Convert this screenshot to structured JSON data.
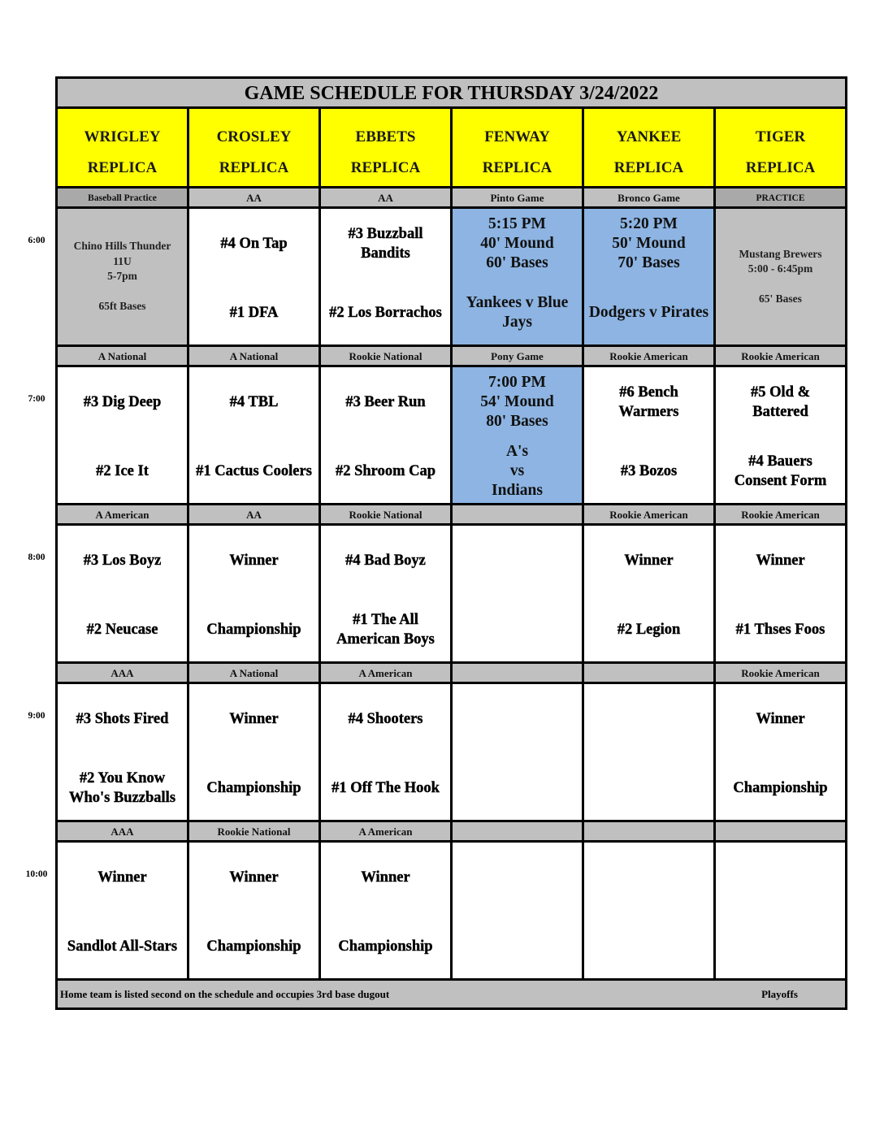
{
  "title": "GAME SCHEDULE FOR THURSDAY 3/24/2022",
  "fields": [
    [
      "WRIGLEY",
      "REPLICA"
    ],
    [
      "CROSLEY",
      "REPLICA"
    ],
    [
      "EBBETS",
      "REPLICA"
    ],
    [
      "FENWAY",
      "REPLICA"
    ],
    [
      "YANKEE",
      "REPLICA"
    ],
    [
      "TIGER",
      "REPLICA"
    ]
  ],
  "colors": {
    "header": "#ffff00",
    "label": "#c0c0c0",
    "practice": "#c0c0c0",
    "special": "#8db4e2"
  },
  "blocks": [
    {
      "time": "6:00",
      "cells": [
        {
          "label": "Baseball Practice",
          "dark": true,
          "bg": "gray",
          "lines": [
            "Chino Hills Thunder",
            "11U",
            "5-7pm",
            "",
            "65ft Bases"
          ]
        },
        {
          "label": "AA",
          "top": [
            "#4 On Tap"
          ],
          "bottom": [
            "#1 DFA"
          ]
        },
        {
          "label": "AA",
          "top": [
            "#3 Buzzball",
            "Bandits"
          ],
          "bottom": [
            "#2 Los Borrachos"
          ]
        },
        {
          "label": "Pinto Game",
          "bg": "blue",
          "top": [
            "5:15 PM",
            "40' Mound",
            "60' Bases"
          ],
          "bottom": [
            "Yankees  v Blue",
            "Jays"
          ]
        },
        {
          "label": "Bronco Game",
          "bg": "blue",
          "top": [
            "5:20 PM",
            "50' Mound",
            "70' Bases"
          ],
          "bottom": [
            "Dodgers v Pirates"
          ]
        },
        {
          "label": "PRACTICE",
          "dark": true,
          "bg": "gray",
          "lines": [
            "Mustang Brewers",
            "5:00 - 6:45pm",
            "",
            "65' Bases"
          ]
        }
      ]
    },
    {
      "time": "7:00",
      "cells": [
        {
          "label": "A National",
          "top": [
            "#3 Dig Deep"
          ],
          "bottom": [
            "#2 Ice It"
          ]
        },
        {
          "label": "A National",
          "top": [
            "#4 TBL"
          ],
          "bottom": [
            "#1 Cactus Coolers"
          ]
        },
        {
          "label": "Rookie National",
          "top": [
            "#3 Beer Run"
          ],
          "bottom": [
            "#2 Shroom Cap"
          ]
        },
        {
          "label": "Pony Game",
          "bg": "blue",
          "top": [
            "7:00 PM",
            "54' Mound",
            "80' Bases"
          ],
          "bottom": [
            "A's",
            "vs",
            "Indians"
          ]
        },
        {
          "label": "Rookie American",
          "top": [
            "#6 Bench",
            "Warmers"
          ],
          "bottom": [
            "#3 Bozos"
          ]
        },
        {
          "label": "Rookie American",
          "top": [
            "#5 Old &",
            "Battered"
          ],
          "bottom": [
            "#4 Bauers",
            "Consent Form"
          ]
        }
      ]
    },
    {
      "time": "8:00",
      "cells": [
        {
          "label": "A American",
          "top": [
            "#3 Los Boyz"
          ],
          "bottom": [
            "#2 Neucase"
          ]
        },
        {
          "label": "AA",
          "top": [
            "Winner"
          ],
          "bottom": [
            "Championship"
          ]
        },
        {
          "label": "Rookie National",
          "top": [
            "#4 Bad Boyz"
          ],
          "bottom": [
            "#1 The All",
            "American Boys"
          ]
        },
        {
          "label": "",
          "top": [],
          "bottom": []
        },
        {
          "label": "Rookie American",
          "top": [
            "Winner"
          ],
          "bottom": [
            "#2 Legion"
          ]
        },
        {
          "label": "Rookie American",
          "top": [
            "Winner"
          ],
          "bottom": [
            "#1 Thses Foos"
          ]
        }
      ]
    },
    {
      "time": "9:00",
      "cells": [
        {
          "label": "AAA",
          "top": [
            "#3 Shots Fired"
          ],
          "bottom": [
            "#2 You Know",
            "Who's Buzzballs"
          ]
        },
        {
          "label": "A National",
          "top": [
            "Winner"
          ],
          "bottom": [
            "Championship"
          ]
        },
        {
          "label": "A American",
          "top": [
            "#4 Shooters"
          ],
          "bottom": [
            "#1 Off The Hook"
          ]
        },
        {
          "label": "",
          "top": [],
          "bottom": []
        },
        {
          "label": "",
          "top": [],
          "bottom": []
        },
        {
          "label": "Rookie American",
          "top": [
            "Winner"
          ],
          "bottom": [
            "Championship"
          ]
        }
      ]
    },
    {
      "time": "10:00",
      "cells": [
        {
          "label": "AAA",
          "top": [
            "Winner"
          ],
          "bottom": [
            "Sandlot All-Stars"
          ]
        },
        {
          "label": "Rookie National",
          "top": [
            "Winner"
          ],
          "bottom": [
            "Championship"
          ]
        },
        {
          "label": "A American",
          "top": [
            "Winner"
          ],
          "bottom": [
            "Championship"
          ]
        },
        {
          "label": "",
          "top": [],
          "bottom": []
        },
        {
          "label": "",
          "top": [],
          "bottom": []
        },
        {
          "label": "",
          "top": [],
          "bottom": []
        }
      ]
    }
  ],
  "footer": {
    "note": "Home team is listed second on the schedule and occupies 3rd base dugout",
    "playoffs": "Playoffs"
  }
}
